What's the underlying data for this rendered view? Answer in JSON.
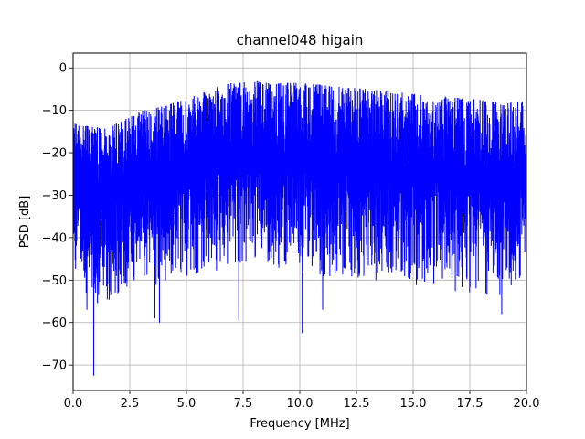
{
  "chart_data": {
    "type": "line",
    "title": "channel048 higain",
    "xlabel": "Frequency [MHz]",
    "ylabel": "PSD [dB]",
    "xlim": [
      0,
      20
    ],
    "ylim": [
      -76,
      3.5
    ],
    "xticks": [
      0,
      2.5,
      5,
      7.5,
      10,
      12.5,
      15,
      17.5,
      20
    ],
    "xtick_labels": [
      "0.0",
      "2.5",
      "5.0",
      "7.5",
      "10.0",
      "12.5",
      "15.0",
      "17.5",
      "20.0"
    ],
    "yticks": [
      0,
      -10,
      -20,
      -30,
      -40,
      -50,
      -60,
      -70
    ],
    "ytick_labels": [
      "0",
      "−10",
      "−20",
      "−30",
      "−40",
      "−50",
      "−60",
      "−70"
    ],
    "grid": true,
    "line_color": "#0000ff",
    "series": [
      {
        "x": [
          0,
          1,
          2,
          3,
          4,
          5,
          6,
          7,
          8,
          9,
          10,
          11,
          12,
          13,
          14,
          15,
          16,
          17,
          18,
          19,
          20
        ],
        "upper_envelope": [
          -13,
          -14,
          -13,
          -10,
          -9,
          -7,
          -5,
          -3.5,
          -3,
          -3.5,
          -3.5,
          -4,
          -4.5,
          -5,
          -5.5,
          -6,
          -6.5,
          -7,
          -7.5,
          -8,
          -8
        ],
        "lower_envelope": [
          -50,
          -56,
          -52,
          -48,
          -52,
          -48,
          -47,
          -46,
          -44,
          -46,
          -47,
          -48,
          -48,
          -49,
          -49,
          -50,
          -50,
          -52,
          -52,
          -54,
          -46
        ]
      }
    ],
    "dips": [
      {
        "x": 0.9,
        "y": -72.5
      },
      {
        "x": 0.6,
        "y": -57
      },
      {
        "x": 3.6,
        "y": -59
      },
      {
        "x": 3.8,
        "y": -60
      },
      {
        "x": 7.3,
        "y": -59.5
      },
      {
        "x": 10.1,
        "y": -62.5
      },
      {
        "x": 11.0,
        "y": -57
      },
      {
        "x": 18.9,
        "y": -58
      }
    ],
    "colors": {
      "axes": "#000000",
      "grid": "#b0b0b0",
      "background": "#ffffff"
    }
  }
}
